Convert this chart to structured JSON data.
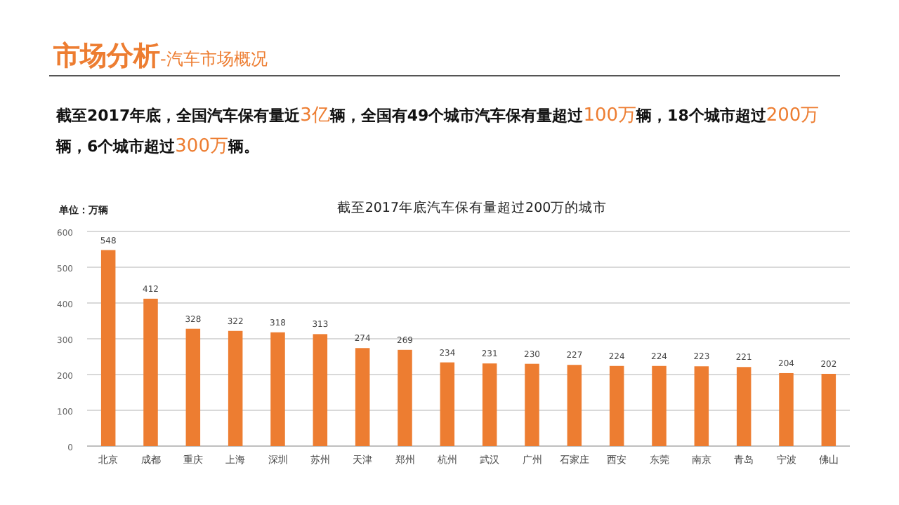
{
  "chart_data": {
    "type": "bar",
    "title": "截至2017年底汽车保有量超过200万的城市",
    "ylabel": "单位：万辆",
    "annotations": [
      "市场分析",
      "-汽车市场概况",
      "截至2017年底，全国汽车保有量近3亿辆，全国有49个城市汽车保有量超过100万辆，18个城市超过200万辆，6个城市超过300万辆。"
    ],
    "categories": [
      "北京",
      "成都",
      "重庆",
      "上海",
      "深圳",
      "苏州",
      "天津",
      "郑州",
      "杭州",
      "武汉",
      "广州",
      "石家庄",
      "西安",
      "东莞",
      "南京",
      "青岛",
      "宁波",
      "佛山"
    ],
    "values": [
      548,
      412,
      328,
      322,
      318,
      313,
      274,
      269,
      234,
      231,
      230,
      227,
      224,
      224,
      223,
      221,
      204,
      202
    ],
    "color": "#ed7d31",
    "ylim": [
      0,
      600
    ],
    "yticks": [
      0,
      100,
      200,
      300,
      400,
      500,
      600
    ],
    "grid": "y",
    "data_labels": true
  }
}
